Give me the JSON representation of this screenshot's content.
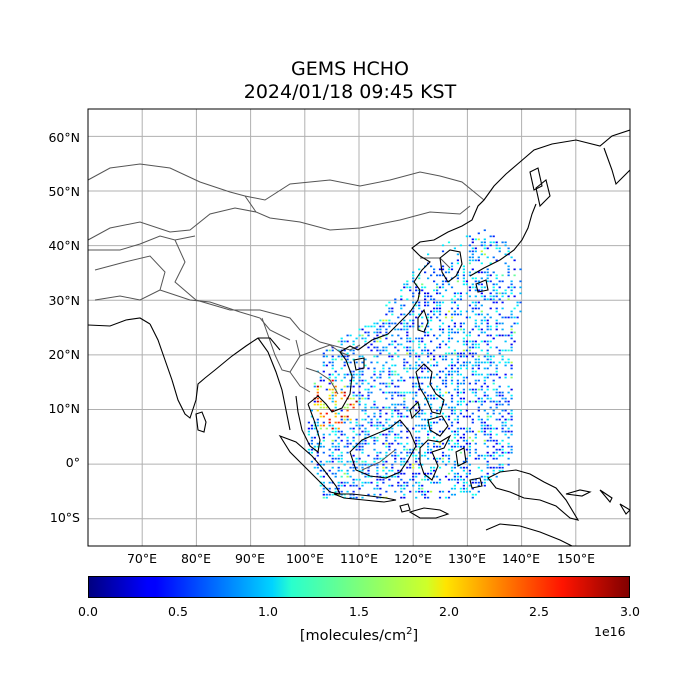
{
  "title": {
    "line1": "GEMS HCHO",
    "line2": "2024/01/18 09:45 KST"
  },
  "map": {
    "projection": "PlateCarree",
    "lon_range": [
      60,
      160
    ],
    "lat_range": [
      -15,
      65
    ],
    "gridlines": true,
    "lat_ticks": [
      "60°N",
      "50°N",
      "40°N",
      "30°N",
      "20°N",
      "10°N",
      "0°",
      "10°S"
    ],
    "lon_ticks": [
      "70°E",
      "80°E",
      "90°E",
      "100°E",
      "110°E",
      "120°E",
      "130°E",
      "140°E",
      "150°E"
    ],
    "data_swath": {
      "lon_range": [
        100,
        140
      ],
      "lat_range": [
        -6,
        43
      ],
      "dominant_value_range": [
        0.3,
        1.2
      ],
      "hotspot_region": "Indochina peninsula",
      "hotspot_value_range": [
        1.5,
        2.9
      ]
    }
  },
  "colorbar": {
    "colormap": "jet",
    "min": 0.0,
    "max": 3.0,
    "ticks": [
      "0.0",
      "0.5",
      "1.0",
      "1.5",
      "2.0",
      "2.5",
      "3.0"
    ],
    "unit_label": "[molecules/cm",
    "unit_superscript": "2",
    "unit_close": "]",
    "exponent": "1e16"
  }
}
